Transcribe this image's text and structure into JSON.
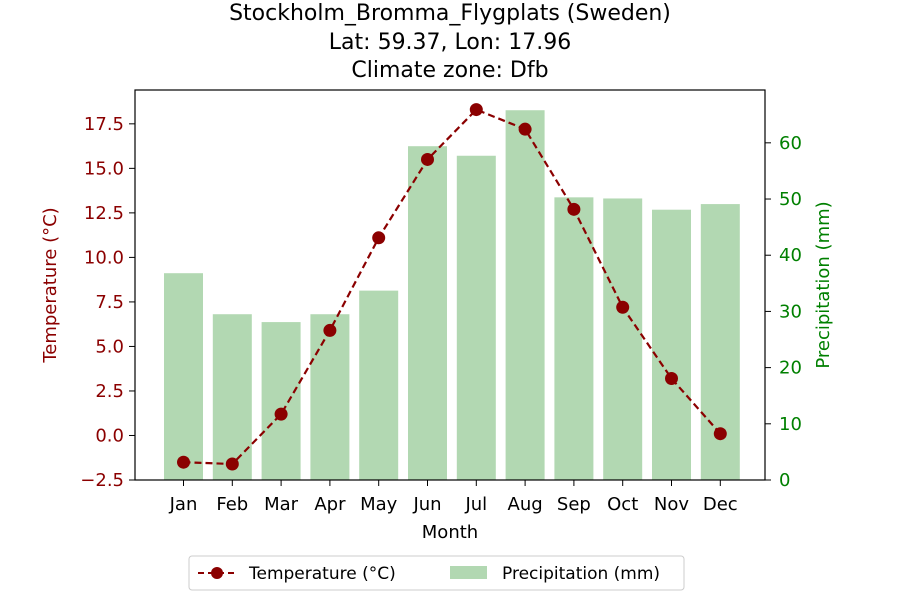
{
  "title_lines": [
    "Stockholm_Bromma_Flygplats (Sweden)",
    "Lat: 59.37, Lon: 17.96",
    "Climate zone: Dfb"
  ],
  "chart_data": {
    "type": "bar+line",
    "categories": [
      "Jan",
      "Feb",
      "Mar",
      "Apr",
      "May",
      "Jun",
      "Jul",
      "Aug",
      "Sep",
      "Oct",
      "Nov",
      "Dec"
    ],
    "xlabel": "Month",
    "left_axis": {
      "label": "Temperature (°C)",
      "range": [
        -2.5,
        19.4
      ],
      "ticks": [
        -2.5,
        0.0,
        2.5,
        5.0,
        7.5,
        10.0,
        12.5,
        15.0,
        17.5
      ],
      "tick_labels": [
        "−2.5",
        "0.0",
        "2.5",
        "5.0",
        "7.5",
        "10.0",
        "12.5",
        "15.0",
        "17.5"
      ],
      "color": "#8b0000"
    },
    "right_axis": {
      "label": "Precipitation (mm)",
      "range": [
        0,
        69.4
      ],
      "ticks": [
        0,
        10,
        20,
        30,
        40,
        50,
        60
      ],
      "tick_labels": [
        "0",
        "10",
        "20",
        "30",
        "40",
        "50",
        "60"
      ],
      "color": "#008000"
    },
    "series": [
      {
        "name": "Temperature (°C)",
        "kind": "line",
        "axis": "left",
        "color": "#8b0000",
        "style": "dashed",
        "marker": "circle",
        "values": [
          -1.5,
          -1.6,
          1.2,
          5.9,
          11.1,
          15.5,
          18.3,
          17.2,
          12.7,
          7.2,
          3.2,
          0.1
        ]
      },
      {
        "name": "Precipitation (mm)",
        "kind": "bar",
        "axis": "right",
        "color": "#b2d8b2",
        "values": [
          36.8,
          29.5,
          28.1,
          29.5,
          33.7,
          59.4,
          57.7,
          65.8,
          50.3,
          50.1,
          48.1,
          49.1
        ]
      }
    ],
    "legend_position": "bottom-center",
    "grid": false
  }
}
